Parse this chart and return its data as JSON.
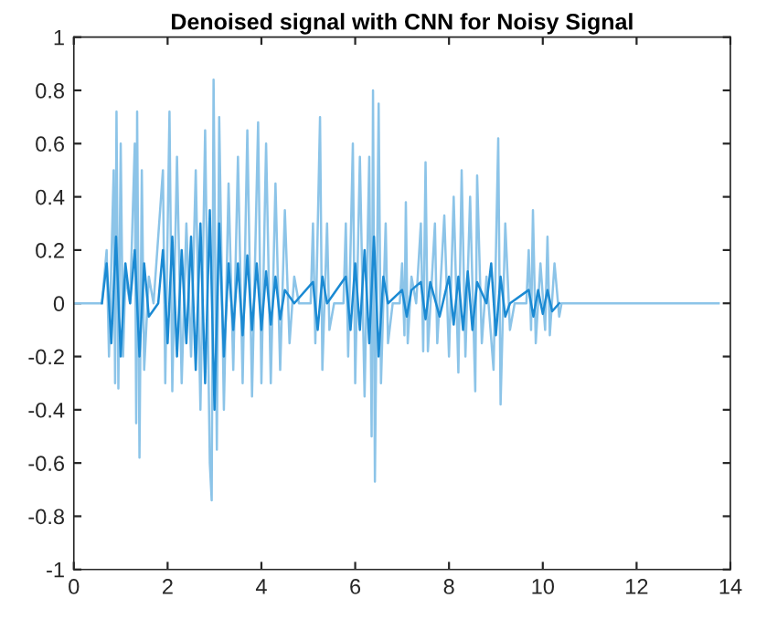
{
  "chart_data": {
    "type": "line",
    "title": "Denoised signal with CNN for Noisy Signal",
    "xlim": [
      0,
      14
    ],
    "xticks": [
      0,
      2,
      4,
      6,
      8,
      10,
      12,
      14
    ],
    "ylim": [
      -1,
      1
    ],
    "yticks": [
      -1,
      -0.8,
      -0.6,
      -0.4,
      -0.2,
      0,
      0.2,
      0.4,
      0.6,
      0.8,
      1
    ],
    "grid": false,
    "series": [
      {
        "color": "#8cc4e8",
        "x": [
          0,
          0.6,
          0.7,
          0.75,
          0.85,
          0.88,
          0.91,
          0.95,
          1.0,
          1.05,
          1.1,
          1.2,
          1.3,
          1.33,
          1.35,
          1.4,
          1.45,
          1.5,
          1.6,
          1.7,
          1.9,
          1.95,
          2.04,
          2.1,
          2.2,
          2.3,
          2.4,
          2.5,
          2.6,
          2.7,
          2.8,
          2.9,
          2.94,
          2.98,
          3.05,
          3.1,
          3.2,
          3.3,
          3.4,
          3.5,
          3.6,
          3.7,
          3.8,
          3.93,
          4.0,
          4.1,
          4.2,
          4.3,
          4.4,
          4.5,
          4.6,
          4.7,
          4.8,
          5.05,
          5.1,
          5.15,
          5.25,
          5.3,
          5.4,
          5.45,
          5.55,
          5.75,
          5.8,
          5.85,
          5.95,
          6.0,
          6.1,
          6.2,
          6.3,
          6.35,
          6.38,
          6.42,
          6.5,
          6.55,
          6.65,
          6.7,
          6.8,
          6.95,
          7.0,
          7.05,
          7.08,
          7.12,
          7.2,
          7.3,
          7.4,
          7.45,
          7.5,
          7.55,
          7.7,
          7.75,
          7.9,
          8.0,
          8.1,
          8.2,
          8.27,
          8.35,
          8.45,
          8.56,
          8.6,
          8.7,
          8.8,
          8.95,
          9.05,
          9.1,
          9.2,
          9.3,
          9.4,
          9.65,
          9.7,
          9.75,
          9.79,
          9.85,
          9.95,
          10.05,
          10.1,
          10.15,
          10.25,
          10.35,
          10.4,
          13.75
        ],
        "values": [
          0,
          0,
          0.2,
          -0.2,
          0.5,
          -0.3,
          0.72,
          -0.32,
          0.6,
          -0.2,
          0.1,
          0,
          0.6,
          -0.45,
          0.72,
          -0.58,
          0.5,
          -0.25,
          0.1,
          0,
          0.5,
          -0.3,
          0.72,
          -0.33,
          0.55,
          -0.3,
          0.3,
          -0.2,
          0.5,
          -0.4,
          0.65,
          -0.6,
          -0.74,
          0.84,
          -0.55,
          0.7,
          -0.4,
          0.45,
          -0.25,
          0.55,
          -0.3,
          0.65,
          -0.35,
          0.68,
          -0.3,
          0.6,
          -0.3,
          0.45,
          -0.25,
          0.35,
          -0.15,
          0.1,
          0,
          0,
          0.3,
          -0.15,
          0.7,
          -0.25,
          0.3,
          -0.1,
          0,
          0,
          0.3,
          -0.2,
          0.6,
          -0.3,
          0.55,
          -0.35,
          0.55,
          -0.5,
          0.8,
          -0.67,
          0.75,
          -0.3,
          0.3,
          -0.15,
          0,
          0,
          0.15,
          -0.12,
          0.38,
          -0.15,
          0.1,
          0,
          0.3,
          -0.18,
          0.53,
          -0.18,
          0.3,
          -0.15,
          0.33,
          -0.2,
          0.4,
          -0.26,
          0.5,
          -0.2,
          0.4,
          -0.33,
          0.48,
          -0.15,
          0.1,
          -0.25,
          0.62,
          -0.38,
          0.3,
          -0.1,
          0,
          0,
          0.2,
          -0.1,
          0.35,
          -0.15,
          0.15,
          -0.1,
          0.25,
          -0.12,
          0.15,
          -0.05,
          0,
          0
        ]
      },
      {
        "color": "#1b8ad3",
        "x": [
          0.6,
          0.7,
          0.8,
          0.9,
          1.0,
          1.1,
          1.2,
          1.3,
          1.4,
          1.5,
          1.6,
          1.8,
          1.9,
          2.0,
          2.1,
          2.2,
          2.3,
          2.4,
          2.5,
          2.6,
          2.7,
          2.8,
          2.9,
          3.0,
          3.1,
          3.2,
          3.3,
          3.4,
          3.5,
          3.6,
          3.7,
          3.8,
          3.9,
          4.0,
          4.1,
          4.2,
          4.3,
          4.4,
          4.5,
          4.7,
          5.1,
          5.2,
          5.3,
          5.4,
          5.8,
          5.9,
          6.0,
          6.1,
          6.2,
          6.3,
          6.4,
          6.5,
          6.6,
          6.7,
          7.0,
          7.1,
          7.2,
          7.4,
          7.5,
          7.6,
          7.8,
          8.0,
          8.1,
          8.2,
          8.3,
          8.4,
          8.5,
          8.6,
          8.8,
          8.9,
          9.0,
          9.1,
          9.2,
          9.3,
          9.7,
          9.8,
          9.9,
          10.0,
          10.1,
          10.2,
          10.35
        ],
        "values": [
          0,
          0.15,
          -0.15,
          0.25,
          -0.2,
          0.15,
          0,
          0.2,
          -0.2,
          0.15,
          -0.05,
          0,
          0.2,
          -0.15,
          0.25,
          -0.2,
          0.2,
          -0.15,
          0.25,
          -0.25,
          0.3,
          -0.3,
          0.35,
          -0.4,
          0.3,
          -0.2,
          0.15,
          -0.1,
          0.15,
          -0.12,
          0.18,
          -0.1,
          0.15,
          -0.1,
          0.12,
          -0.08,
          0.1,
          -0.06,
          0.05,
          0,
          0.08,
          -0.1,
          0.1,
          0,
          0.1,
          -0.1,
          0.15,
          -0.1,
          0.2,
          -0.15,
          0.25,
          -0.2,
          0.1,
          0,
          0.05,
          -0.05,
          0.05,
          0.08,
          -0.06,
          0.08,
          -0.05,
          0.1,
          -0.08,
          0.1,
          -0.1,
          0.12,
          -0.1,
          0.08,
          0,
          0.15,
          -0.12,
          0.1,
          -0.05,
          0,
          0.05,
          -0.05,
          0.05,
          -0.04,
          0.05,
          -0.03,
          0
        ]
      }
    ]
  }
}
